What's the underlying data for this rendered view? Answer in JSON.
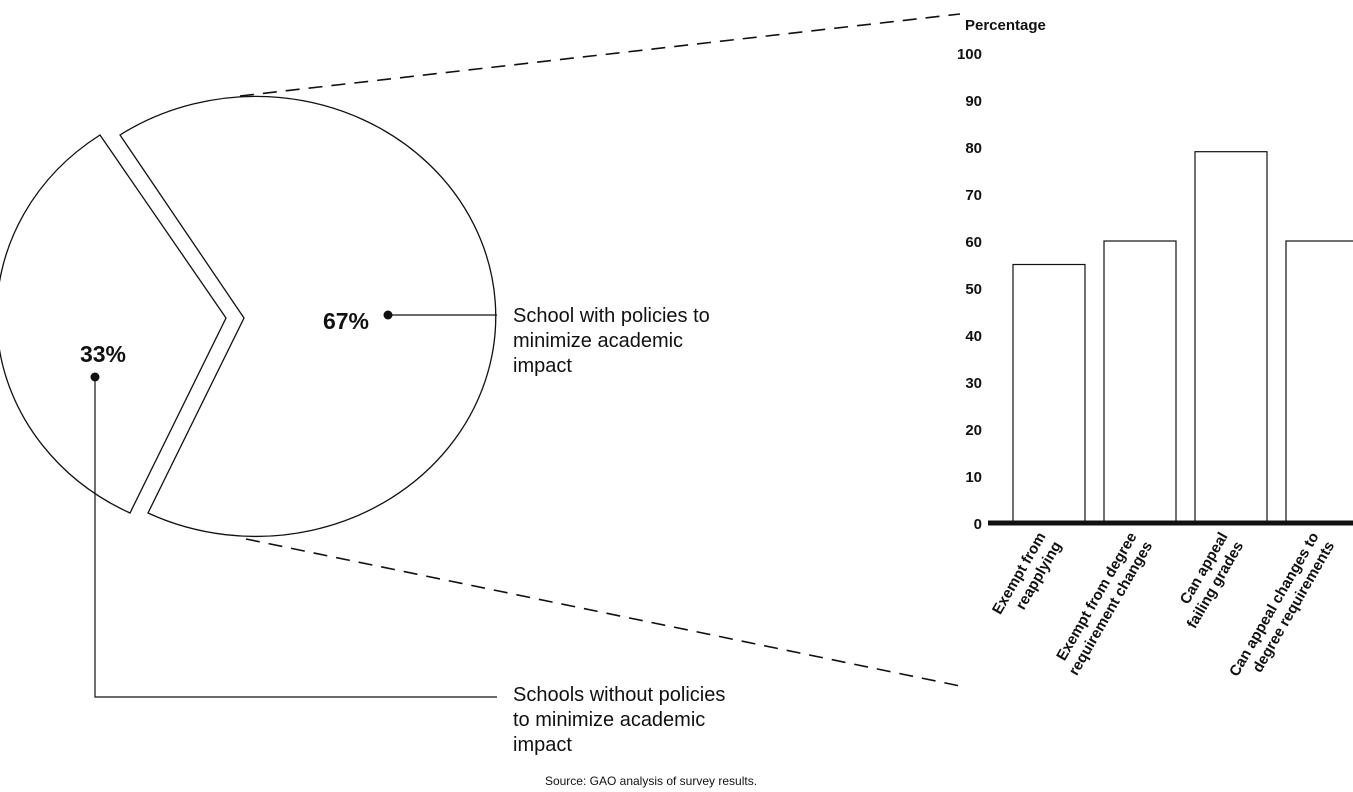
{
  "chart_data": [
    {
      "type": "pie",
      "slices": [
        {
          "label": "School with policies to minimize academic impact",
          "label_lines": [
            "School with policies to",
            "minimize academic",
            "impact"
          ],
          "value": 67,
          "value_label": "67%"
        },
        {
          "label": "Schools without policies to minimize academic impact",
          "label_lines": [
            "Schools without policies",
            "to minimize academic",
            "impact"
          ],
          "value": 33,
          "value_label": "33%"
        }
      ]
    },
    {
      "type": "bar",
      "ylabel": "Percentage",
      "ylim": [
        0,
        100
      ],
      "yticks": [
        "0",
        "10",
        "20",
        "30",
        "40",
        "50",
        "60",
        "70",
        "80",
        "90",
        "100"
      ],
      "categories": [
        {
          "label": "Exempt from reapplying",
          "lines": [
            "Exempt from",
            "reapplying"
          ]
        },
        {
          "label": "Exempt from degree requirement changes",
          "lines": [
            "Exempt from degree",
            "requirement changes"
          ]
        },
        {
          "label": "Can appeal failing grades",
          "lines": [
            "Can appeal",
            "failing grades"
          ]
        },
        {
          "label": "Can appeal changes to degree requirements",
          "lines": [
            "Can appeal changes to",
            "degree requirements"
          ]
        }
      ],
      "values": [
        55,
        60,
        79,
        60
      ],
      "grid": false,
      "colors": {
        "bar_fill": "#ffffff",
        "bar_stroke": "#111111",
        "baseline": "#111111"
      }
    }
  ],
  "source": "Source: GAO analysis of survey results."
}
